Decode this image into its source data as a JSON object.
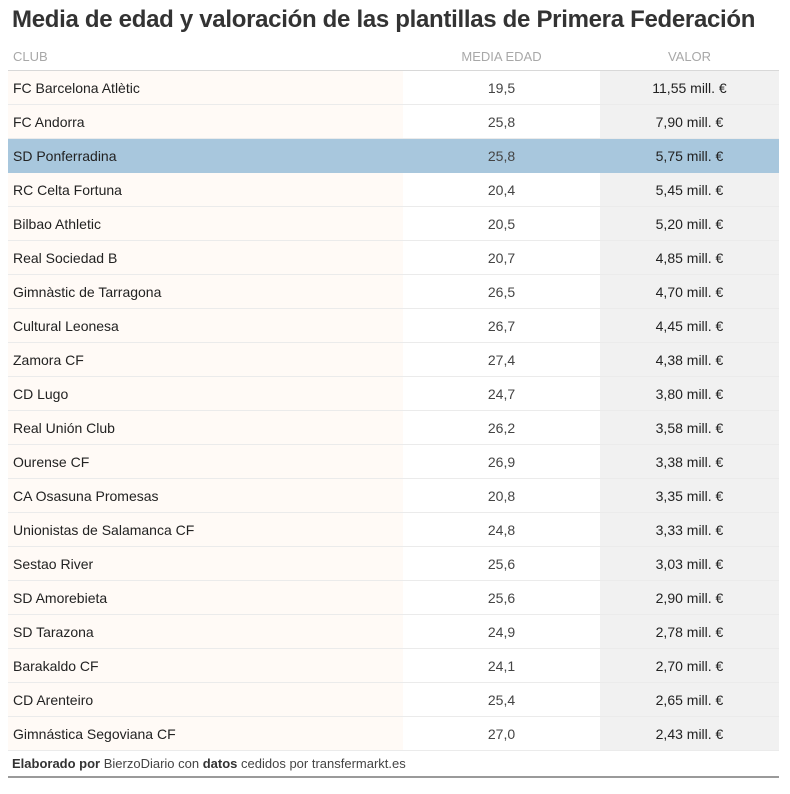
{
  "title": "Media de edad y valoración de las plantillas de Primera Federación",
  "columns": {
    "club": "CLUB",
    "age": "MEDIA EDAD",
    "value": "VALOR"
  },
  "colors": {
    "highlight": "#a8c7dd",
    "value_bg": "#f1f1f1",
    "club_bg": "#fffaf6"
  },
  "chart_data": {
    "type": "table",
    "title": "Media de edad y valoración de las plantillas de Primera Federación",
    "highlighted_row": "SD Ponferradina",
    "rows": [
      {
        "club": "FC Barcelona Atlètic",
        "age": "19,5",
        "value": "11,55 mill. €"
      },
      {
        "club": "FC Andorra",
        "age": "25,8",
        "value": "7,90 mill. €"
      },
      {
        "club": "SD Ponferradina",
        "age": "25,8",
        "value": "5,75 mill. €"
      },
      {
        "club": "RC Celta Fortuna",
        "age": "20,4",
        "value": "5,45 mill. €"
      },
      {
        "club": "Bilbao Athletic",
        "age": "20,5",
        "value": "5,20 mill. €"
      },
      {
        "club": "Real Sociedad B",
        "age": "20,7",
        "value": "4,85 mill. €"
      },
      {
        "club": "Gimnàstic de Tarragona",
        "age": "26,5",
        "value": "4,70 mill. €"
      },
      {
        "club": "Cultural Leonesa",
        "age": "26,7",
        "value": "4,45 mill. €"
      },
      {
        "club": "Zamora CF",
        "age": "27,4",
        "value": "4,38 mill. €"
      },
      {
        "club": "CD Lugo",
        "age": "24,7",
        "value": "3,80 mill. €"
      },
      {
        "club": "Real Unión Club",
        "age": "26,2",
        "value": "3,58 mill. €"
      },
      {
        "club": "Ourense CF",
        "age": "26,9",
        "value": "3,38 mill. €"
      },
      {
        "club": "CA Osasuna Promesas",
        "age": "20,8",
        "value": "3,35 mill. €"
      },
      {
        "club": "Unionistas de Salamanca CF",
        "age": "24,8",
        "value": "3,33 mill. €"
      },
      {
        "club": "Sestao River",
        "age": "25,6",
        "value": "3,03 mill. €"
      },
      {
        "club": "SD Amorebieta",
        "age": "25,6",
        "value": "2,90 mill. €"
      },
      {
        "club": "SD Tarazona",
        "age": "24,9",
        "value": "2,78 mill. €"
      },
      {
        "club": "Barakaldo CF",
        "age": "24,1",
        "value": "2,70 mill. €"
      },
      {
        "club": "CD Arenteiro",
        "age": "25,4",
        "value": "2,65 mill. €"
      },
      {
        "club": "Gimnástica Segoviana CF",
        "age": "27,0",
        "value": "2,43 mill. €"
      }
    ]
  },
  "footer": {
    "part1": "Elaborado por",
    "part2": " BierzoDiario con ",
    "part3": "datos",
    "part4": " cedidos por transfermarkt.es"
  }
}
